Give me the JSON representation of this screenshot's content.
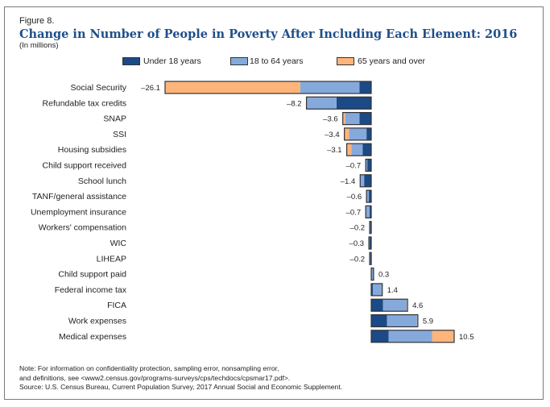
{
  "figure_number": "Figure 8.",
  "colors": {
    "under18": "#1b4a86",
    "age18to64": "#86a9dc",
    "age65plus": "#fdb57c",
    "border": "#333333",
    "title": "#1f4e8a"
  },
  "chart_data": {
    "type": "bar",
    "orientation": "horizontal-stacked",
    "title": "Change in Number of People in Poverty After Including Each Element: 2016",
    "subtitle": "(In millions)",
    "xlabel": "",
    "ylabel": "",
    "xlim": [
      -26.1,
      10.5
    ],
    "grid": false,
    "legend_position": "top",
    "legend": [
      "Under 18 years",
      "18 to 64 years",
      "65 years and over"
    ],
    "categories": [
      "Social Security",
      "Refundable tax credits",
      "SNAP",
      "SSI",
      "Housing subsidies",
      "Child support received",
      "School lunch",
      "TANF/general assistance",
      "Unemployment insurance",
      "Workers' compensation",
      "WIC",
      "LIHEAP",
      "Child support paid",
      "Federal income tax",
      "FICA",
      "Work expenses",
      "Medical expenses"
    ],
    "totals": [
      -26.1,
      -8.2,
      -3.6,
      -3.4,
      -3.1,
      -0.7,
      -1.4,
      -0.6,
      -0.7,
      -0.2,
      -0.3,
      -0.2,
      0.3,
      1.4,
      4.6,
      5.9,
      10.5
    ],
    "total_labels": [
      "–26.1",
      "–8.2",
      "–3.6",
      "–3.4",
      "–3.1",
      "–0.7",
      "–1.4",
      "–0.6",
      "–0.7",
      "–0.2",
      "–0.3",
      "–0.2",
      "0.3",
      "1.4",
      "4.6",
      "5.9",
      "10.5"
    ],
    "series": [
      {
        "name": "Under 18 years",
        "values": [
          -1.5,
          -4.4,
          -1.5,
          -0.6,
          -1.1,
          -0.5,
          -0.9,
          -0.3,
          -0.2,
          -0.1,
          -0.2,
          -0.1,
          0.0,
          0.2,
          1.5,
          2.0,
          2.2
        ]
      },
      {
        "name": "18 to 64 years",
        "values": [
          -7.5,
          -3.8,
          -1.8,
          -2.2,
          -1.4,
          -0.2,
          -0.5,
          -0.3,
          -0.5,
          -0.1,
          -0.1,
          -0.1,
          0.3,
          1.2,
          3.0,
          3.8,
          5.5
        ]
      },
      {
        "name": "65 years and over",
        "values": [
          -17.1,
          0.0,
          -0.3,
          -0.6,
          -0.6,
          0.0,
          0.0,
          0.0,
          0.0,
          0.0,
          0.0,
          0.0,
          0.0,
          0.0,
          0.1,
          0.1,
          2.8
        ]
      }
    ]
  },
  "notes": {
    "line1": "Note: For information on confidentiality protection, sampling error, nonsampling error,",
    "line2": "and definitions, see <www2.census.gov/programs-surveys/cps/techdocs/cpsmar17.pdf>.",
    "line3": "Source: U.S. Census Bureau, Current Population Survey, 2017 Annual Social and Economic Supplement."
  }
}
